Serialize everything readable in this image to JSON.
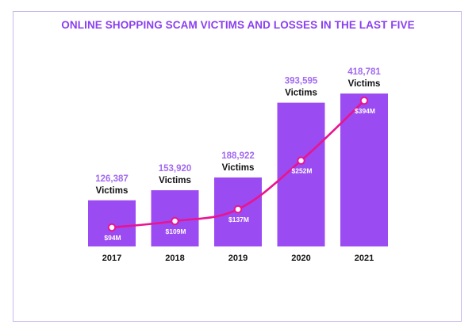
{
  "chart_data": {
    "type": "bar",
    "title": "ONLINE SHOPPING SCAM VICTIMS AND LOSSES IN THE LAST FIVE",
    "categories": [
      "2017",
      "2018",
      "2019",
      "2020",
      "2021"
    ],
    "series": [
      {
        "name": "",
        "type": "bar",
        "values": [
          126387,
          153920,
          188922,
          393595,
          418781
        ],
        "labels": [
          "126,387",
          "153,920",
          "188,922",
          "393,595",
          "418,781"
        ],
        "unit_label": "Victims"
      },
      {
        "name": "",
        "type": "line",
        "values": [
          94,
          109,
          137,
          252,
          394
        ],
        "labels": [
          "$94M",
          "$109M",
          "$137M",
          "$252M",
          "$394M"
        ]
      }
    ],
    "colors": {
      "bar": "#9b4bf2",
      "line": "#e9148f",
      "title": "#8a3ff0",
      "victim_number": "#a26af0",
      "victim_label": "#111111",
      "loss_label": "#ffffff",
      "frame": "#c9b8ee"
    }
  }
}
